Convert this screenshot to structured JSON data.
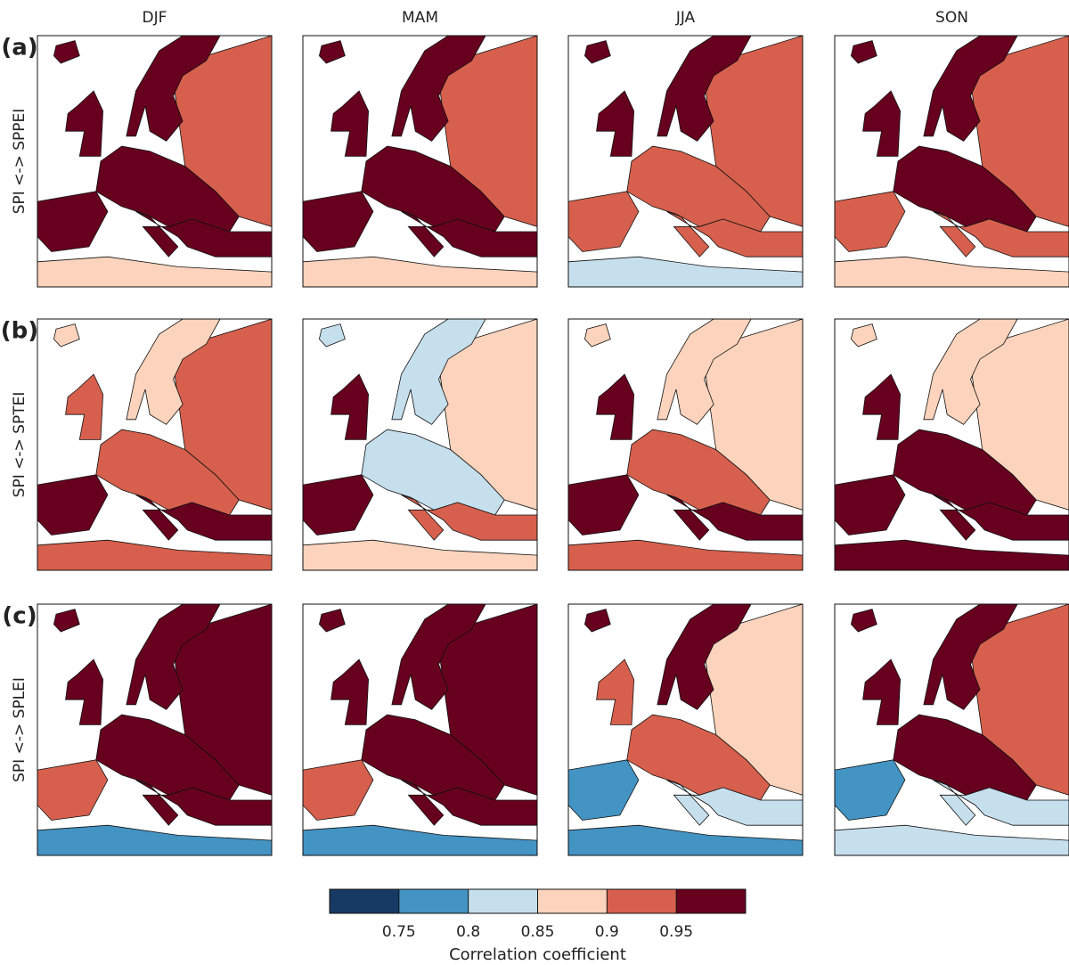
{
  "columns": [
    "DJF",
    "MAM",
    "JJA",
    "SON"
  ],
  "rows": [
    {
      "letter": "(a)",
      "label": "SPI <-> SPPEI"
    },
    {
      "letter": "(b)",
      "label": "SPI <-> SPTEI"
    },
    {
      "letter": "(c)",
      "label": "SPI <-> SPLEI"
    }
  ],
  "maps": [
    [
      {
        "north": 0.97,
        "west": 0.97,
        "central": 0.97,
        "east": 0.92,
        "south": 0.97,
        "med": 0.97,
        "africa": 0.87
      },
      {
        "north": 0.97,
        "west": 0.97,
        "central": 0.97,
        "east": 0.93,
        "south": 0.97,
        "med": 0.97,
        "africa": 0.87
      },
      {
        "north": 0.97,
        "west": 0.97,
        "central": 0.93,
        "east": 0.92,
        "south": 0.93,
        "med": 0.93,
        "africa": 0.82
      },
      {
        "north": 0.97,
        "west": 0.97,
        "central": 0.96,
        "east": 0.92,
        "south": 0.93,
        "med": 0.93,
        "africa": 0.87
      }
    ],
    [
      {
        "north": 0.88,
        "west": 0.93,
        "central": 0.93,
        "east": 0.92,
        "south": 0.97,
        "med": 0.96,
        "africa": 0.92
      },
      {
        "north": 0.84,
        "west": 0.96,
        "central": 0.82,
        "east": 0.86,
        "south": 0.96,
        "med": 0.92,
        "africa": 0.88
      },
      {
        "north": 0.87,
        "west": 0.96,
        "central": 0.93,
        "east": 0.88,
        "south": 0.97,
        "med": 0.97,
        "africa": 0.93
      },
      {
        "north": 0.87,
        "west": 0.96,
        "central": 0.97,
        "east": 0.88,
        "south": 0.97,
        "med": 0.97,
        "africa": 0.97
      }
    ],
    [
      {
        "north": 0.97,
        "west": 0.97,
        "central": 0.97,
        "east": 0.96,
        "south": 0.92,
        "med": 0.97,
        "africa": 0.76
      },
      {
        "north": 0.97,
        "west": 0.97,
        "central": 0.97,
        "east": 0.96,
        "south": 0.92,
        "med": 0.96,
        "africa": 0.78
      },
      {
        "north": 0.97,
        "west": 0.92,
        "central": 0.9,
        "east": 0.86,
        "south": 0.76,
        "med": 0.8,
        "africa": 0.77
      },
      {
        "north": 0.97,
        "west": 0.97,
        "central": 0.96,
        "east": 0.92,
        "south": 0.77,
        "med": 0.82,
        "africa": 0.8
      }
    ]
  ],
  "colorbar": {
    "label": "Correlation coefficient",
    "lim": [
      0.7,
      1.0
    ],
    "ticks": [
      0.75,
      0.8,
      0.85,
      0.9,
      0.95
    ],
    "colors": [
      "#163a63",
      "#4393c3",
      "#c6dfed",
      "#fcd3bc",
      "#d6604d",
      "#67001f"
    ]
  }
}
